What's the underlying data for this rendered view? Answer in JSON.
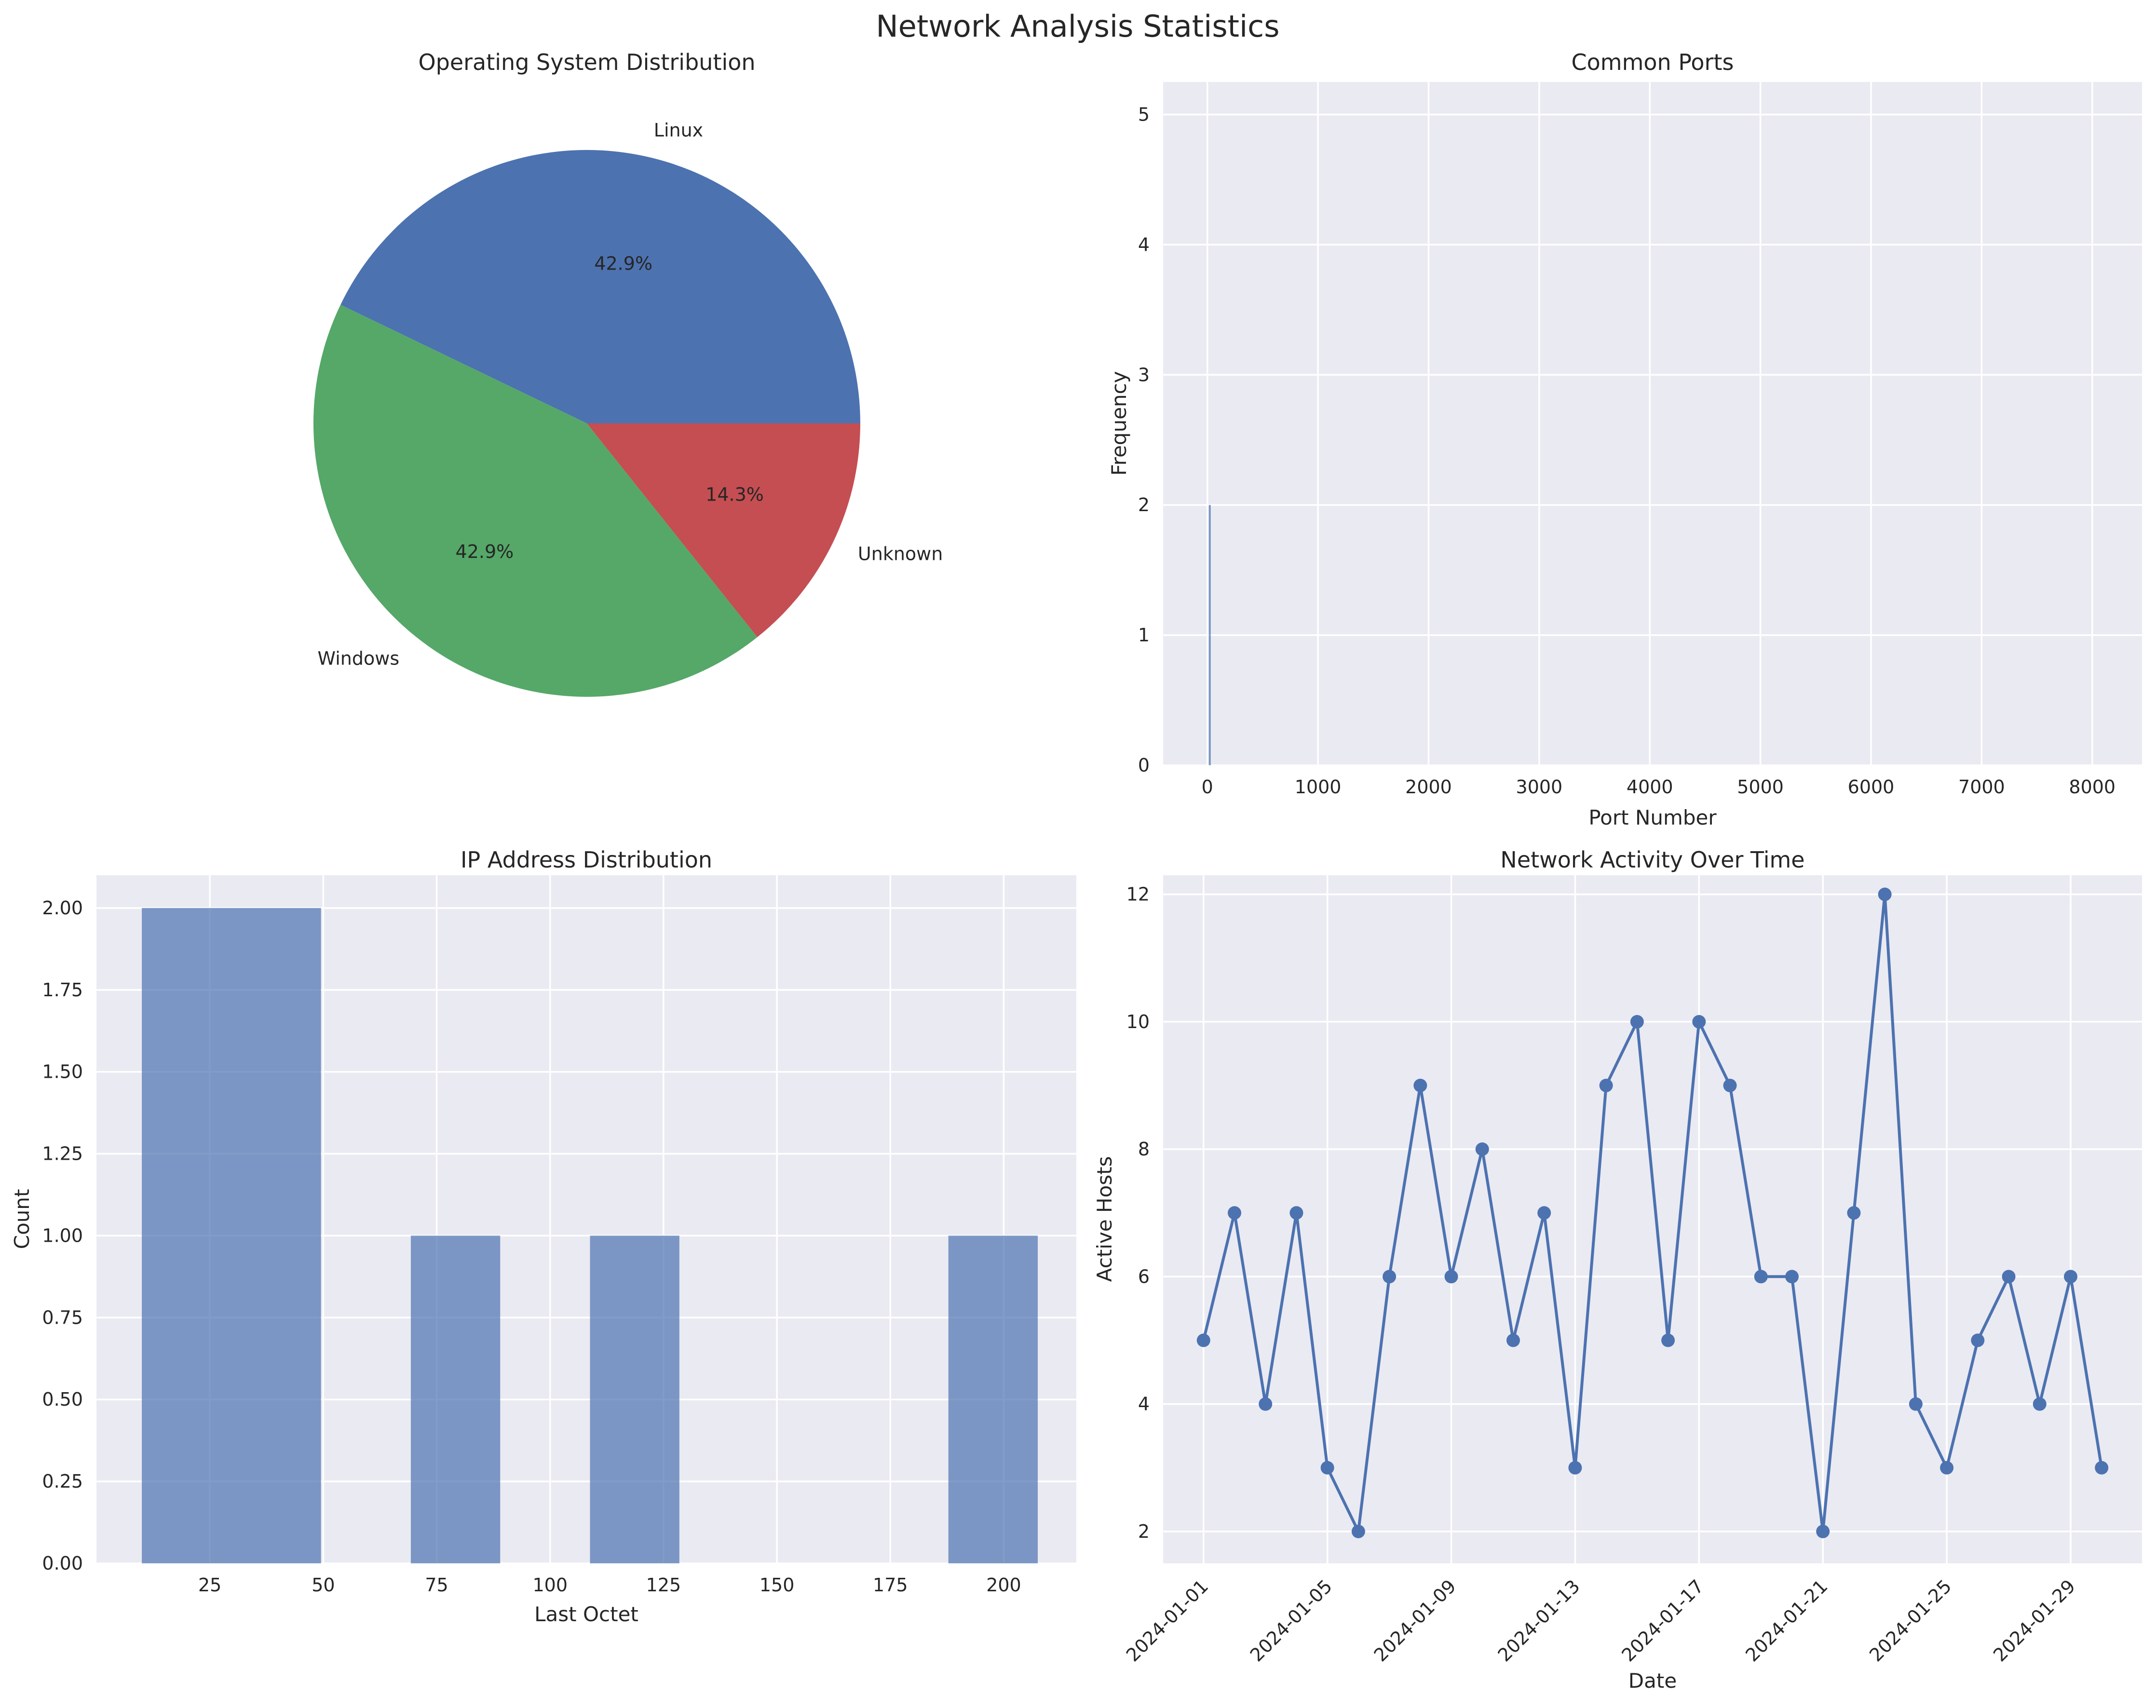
{
  "figure": {
    "suptitle": "Network Analysis Statistics",
    "colors": {
      "axes_bg": "#eaeaf2",
      "blue": "#4c72b0",
      "green": "#55a868",
      "red": "#c44e52"
    }
  },
  "chart_data": [
    {
      "type": "pie",
      "title": "Operating System Distribution",
      "labels": [
        "Linux",
        "Windows",
        "Unknown"
      ],
      "values": [
        3,
        3,
        1
      ],
      "percent_labels": [
        "42.9%",
        "42.9%",
        "14.3%"
      ],
      "colors": [
        "#4c72b0",
        "#55a868",
        "#c44e52"
      ]
    },
    {
      "type": "bar",
      "title": "Common Ports",
      "xlabel": "Port Number",
      "ylabel": "Frequency",
      "xlim": [
        -400,
        8450
      ],
      "ylim": [
        0,
        5.25
      ],
      "xticks": [
        0,
        1000,
        2000,
        3000,
        4000,
        5000,
        6000,
        7000,
        8000
      ],
      "yticks": [
        0,
        1,
        2,
        3,
        4,
        5
      ],
      "bars": [
        {
          "x": 22,
          "value": 2
        }
      ],
      "grid": true
    },
    {
      "type": "bar",
      "title": "IP Address Distribution",
      "xlabel": "Last Octet",
      "ylabel": "Count",
      "xlim": [
        0,
        216
      ],
      "ylim": [
        0,
        2.1
      ],
      "xticks": [
        25,
        50,
        75,
        100,
        125,
        150,
        175,
        200
      ],
      "yticks": [
        "0.00",
        "0.25",
        "0.50",
        "0.75",
        "1.00",
        "1.25",
        "1.50",
        "1.75",
        "2.00"
      ],
      "bins": [
        {
          "start": 10,
          "end": 49.5,
          "count": 2
        },
        {
          "start": 69.3,
          "end": 89,
          "count": 1
        },
        {
          "start": 108.8,
          "end": 128.5,
          "count": 1
        },
        {
          "start": 187.8,
          "end": 207.5,
          "count": 1
        }
      ],
      "grid": true
    },
    {
      "type": "line",
      "title": "Network Activity Over Time",
      "xlabel": "Date",
      "ylabel": "Active Hosts",
      "ylim": [
        1.5,
        12.3
      ],
      "yticks": [
        2,
        4,
        6,
        8,
        10,
        12
      ],
      "xticks": [
        "2024-01-01",
        "2024-01-05",
        "2024-01-09",
        "2024-01-13",
        "2024-01-17",
        "2024-01-21",
        "2024-01-25",
        "2024-01-29"
      ],
      "x": [
        "2024-01-01",
        "2024-01-02",
        "2024-01-03",
        "2024-01-04",
        "2024-01-05",
        "2024-01-06",
        "2024-01-07",
        "2024-01-08",
        "2024-01-09",
        "2024-01-10",
        "2024-01-11",
        "2024-01-12",
        "2024-01-13",
        "2024-01-14",
        "2024-01-15",
        "2024-01-16",
        "2024-01-17",
        "2024-01-18",
        "2024-01-19",
        "2024-01-20",
        "2024-01-21",
        "2024-01-22",
        "2024-01-23",
        "2024-01-24",
        "2024-01-25",
        "2024-01-26",
        "2024-01-27",
        "2024-01-28",
        "2024-01-29",
        "2024-01-30"
      ],
      "y": [
        5,
        7,
        4,
        7,
        3,
        2,
        6,
        9,
        6,
        8,
        5,
        7,
        3,
        9,
        10,
        5,
        10,
        9,
        6,
        6,
        2,
        7,
        12,
        4,
        3,
        5,
        6,
        4,
        6,
        3
      ],
      "grid": true
    }
  ]
}
